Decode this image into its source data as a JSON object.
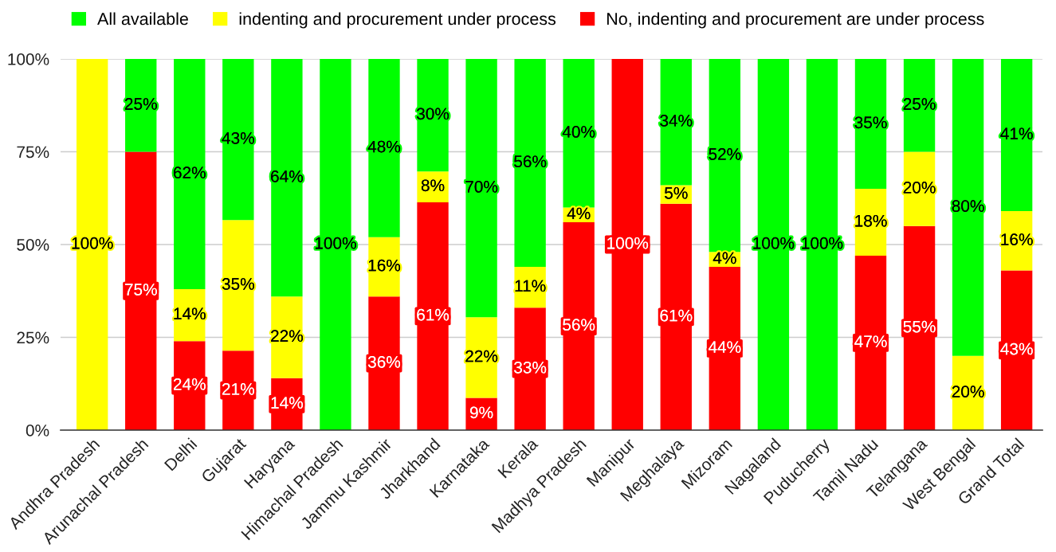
{
  "chart_data": {
    "type": "bar",
    "stacked": true,
    "categories": [
      "Andhra Pradesh",
      "Arunachal Pradesh",
      "Delhi",
      "Gujarat",
      "Haryana",
      "Himachal Pradesh",
      "Jammu Kashmir",
      "Jharkhand",
      "Karnataka",
      "Kerala",
      "Madhya Pradesh",
      "Manipur",
      "Meghalaya",
      "Mizoram",
      "Nagaland",
      "Puducherry",
      "Tamil Nadu",
      "Telangana",
      "West Bengal",
      "Grand Total"
    ],
    "series": [
      {
        "name": "No, indenting and procurement are under process",
        "color": "#ff0000",
        "values": [
          null,
          75,
          24,
          21.4,
          14,
          null,
          36,
          61.4,
          8.7,
          33,
          56,
          100,
          61,
          44,
          null,
          null,
          47,
          55,
          null,
          43
        ],
        "value_labels": [
          null,
          "75%",
          "24%",
          "21%",
          "14%",
          null,
          "36%",
          "61%",
          "9%",
          "33%",
          "56%",
          "100%",
          "61%",
          "44%",
          null,
          null,
          "47%",
          "55%",
          null,
          "43%"
        ]
      },
      {
        "name": "indenting and procurement under process",
        "color": "#ffff00",
        "values": [
          100,
          null,
          14,
          35.2,
          22,
          null,
          16,
          8.3,
          21.7,
          11,
          4,
          null,
          5,
          4,
          null,
          null,
          18,
          20,
          20,
          16
        ],
        "value_labels": [
          "100%",
          null,
          "14%",
          "35%",
          "22%",
          null,
          "16%",
          "8%",
          "22%",
          "11%",
          "4%",
          null,
          "5%",
          "4%",
          null,
          null,
          "18%",
          "20%",
          "20%",
          "16%"
        ]
      },
      {
        "name": "All available",
        "color": "#00ff00",
        "values": [
          null,
          25,
          62,
          43.4,
          64,
          100,
          48,
          30.3,
          69.6,
          56,
          40,
          null,
          34,
          52,
          100,
          100,
          35,
          25,
          80,
          41
        ],
        "value_labels": [
          null,
          "25%",
          "62%",
          "43%",
          "64%",
          "100%",
          "48%",
          "30%",
          "70%",
          "56%",
          "40%",
          null,
          "34%",
          "52%",
          "100%",
          "100%",
          "35%",
          "25%",
          "80%",
          "41%"
        ]
      }
    ],
    "ylim": [
      0,
      100
    ],
    "yticks": [
      {
        "value": 0,
        "label": "0%"
      },
      {
        "value": 25,
        "label": "25%"
      },
      {
        "value": 50,
        "label": "50%"
      },
      {
        "value": 75,
        "label": "75%"
      },
      {
        "value": 100,
        "label": "100%"
      }
    ],
    "grid": "y",
    "legend": "top"
  }
}
